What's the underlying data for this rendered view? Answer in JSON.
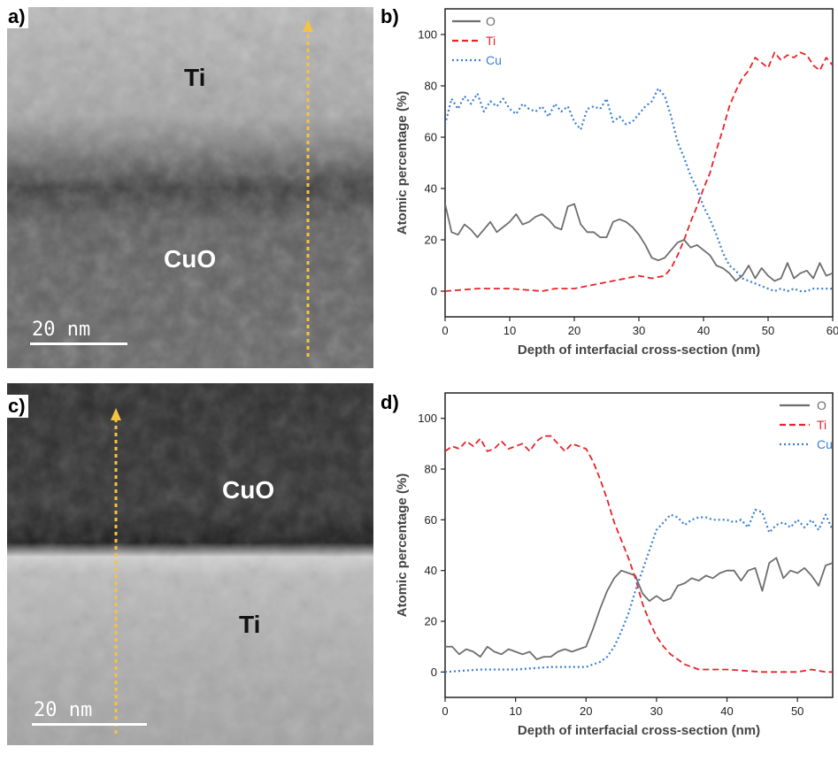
{
  "panels": {
    "a": {
      "tag": "a)",
      "top_label": "Ti",
      "bottom_label": "CuO",
      "scale_text": "20 nm"
    },
    "c": {
      "tag": "c)",
      "top_label": "CuO",
      "bottom_label": "Ti",
      "scale_text": "20 nm"
    },
    "b": {
      "tag": "b)"
    },
    "d": {
      "tag": "d)"
    }
  },
  "colors": {
    "O": "#6e6e6e",
    "Ti": "#e8232a",
    "Cu": "#3a7fd5",
    "arrow": "#f5c342"
  },
  "chart_data": [
    {
      "id": "b",
      "type": "line",
      "xlabel": "Depth of interfacial cross-section (nm)",
      "ylabel": "Atomic percentage (%)",
      "xlim": [
        0,
        60
      ],
      "ylim": [
        -10,
        110
      ],
      "xticks": [
        0,
        10,
        20,
        30,
        40,
        50,
        60
      ],
      "yticks": [
        0,
        20,
        40,
        60,
        80,
        100
      ],
      "legend_position": "top-left",
      "series": [
        {
          "name": "O",
          "style": "solid",
          "x": [
            0,
            1,
            2,
            3,
            4,
            5,
            6,
            7,
            8,
            9,
            10,
            11,
            12,
            13,
            14,
            15,
            16,
            17,
            18,
            19,
            20,
            21,
            22,
            23,
            24,
            25,
            26,
            27,
            28,
            29,
            30,
            31,
            32,
            33,
            34,
            35,
            36,
            37,
            38,
            39,
            40,
            41,
            42,
            43,
            44,
            45,
            46,
            47,
            48,
            49,
            50,
            51,
            52,
            53,
            54,
            55,
            56,
            57,
            58,
            59,
            60
          ],
          "y": [
            34,
            23,
            22,
            26,
            24,
            21,
            24,
            27,
            23,
            25,
            27,
            30,
            26,
            27,
            29,
            30,
            28,
            25,
            24,
            33,
            34,
            26,
            23,
            23,
            21,
            21,
            27,
            28,
            27,
            25,
            22,
            18,
            13,
            12,
            13,
            16,
            19,
            20,
            17,
            18,
            16,
            14,
            10,
            9,
            7,
            4,
            6,
            10,
            5,
            9,
            6,
            4,
            5,
            11,
            5,
            7,
            8,
            5,
            11,
            6,
            7
          ]
        },
        {
          "name": "Ti",
          "style": "dashed",
          "x": [
            0,
            5,
            10,
            15,
            17,
            20,
            22,
            24,
            26,
            28,
            30,
            32,
            34,
            35,
            36,
            37,
            38,
            39,
            40,
            41,
            42,
            43,
            44,
            45,
            46,
            47,
            48,
            49,
            50,
            51,
            52,
            53,
            54,
            55,
            56,
            57,
            58,
            59,
            60
          ],
          "y": [
            0,
            1,
            1,
            0,
            1,
            1,
            2,
            3,
            4,
            5,
            6,
            5,
            6,
            9,
            14,
            20,
            27,
            33,
            40,
            46,
            55,
            63,
            72,
            78,
            83,
            86,
            91,
            89,
            87,
            93,
            90,
            92,
            91,
            93,
            92,
            88,
            86,
            91,
            88
          ]
        },
        {
          "name": "Cu",
          "style": "dotted",
          "x": [
            0,
            1,
            2,
            3,
            4,
            5,
            6,
            7,
            8,
            9,
            10,
            11,
            12,
            13,
            14,
            15,
            16,
            17,
            18,
            19,
            20,
            21,
            22,
            23,
            24,
            25,
            26,
            27,
            28,
            29,
            30,
            31,
            32,
            33,
            34,
            35,
            36,
            37,
            38,
            39,
            40,
            41,
            42,
            43,
            44,
            45,
            46,
            47,
            48,
            49,
            50,
            51,
            52,
            53,
            54,
            55,
            56,
            57,
            58,
            59,
            60
          ],
          "y": [
            65,
            75,
            71,
            76,
            73,
            77,
            70,
            74,
            72,
            75,
            71,
            69,
            73,
            71,
            70,
            72,
            68,
            73,
            70,
            72,
            66,
            63,
            71,
            72,
            71,
            75,
            66,
            68,
            65,
            66,
            69,
            72,
            74,
            79,
            76,
            68,
            58,
            52,
            45,
            40,
            33,
            28,
            22,
            15,
            10,
            8,
            5,
            4,
            3,
            2,
            1,
            0,
            1,
            0,
            1,
            0,
            0,
            1,
            1,
            1,
            1
          ]
        }
      ]
    },
    {
      "id": "d",
      "type": "line",
      "xlabel": "Depth of interfacial cross-section (nm)",
      "ylabel": "Atomic percentage (%)",
      "xlim": [
        0,
        55
      ],
      "ylim": [
        -10,
        110
      ],
      "xticks": [
        0,
        10,
        20,
        30,
        40,
        50
      ],
      "yticks": [
        0,
        20,
        40,
        60,
        80,
        100
      ],
      "legend_position": "top-right",
      "series": [
        {
          "name": "O",
          "style": "solid",
          "x": [
            0,
            1,
            2,
            3,
            4,
            5,
            6,
            7,
            8,
            9,
            10,
            11,
            12,
            13,
            14,
            15,
            16,
            17,
            18,
            19,
            20,
            21,
            22,
            23,
            24,
            25,
            26,
            27,
            28,
            29,
            30,
            31,
            32,
            33,
            34,
            35,
            36,
            37,
            38,
            39,
            40,
            41,
            42,
            43,
            44,
            45,
            46,
            47,
            48,
            49,
            50,
            51,
            52,
            53,
            54,
            55
          ],
          "y": [
            10,
            10,
            7,
            9,
            8,
            6,
            10,
            8,
            7,
            9,
            8,
            7,
            8,
            5,
            6,
            6,
            8,
            9,
            8,
            9,
            10,
            17,
            25,
            32,
            37,
            40,
            39,
            38,
            31,
            28,
            30,
            28,
            29,
            34,
            35,
            37,
            36,
            38,
            37,
            39,
            40,
            40,
            36,
            40,
            41,
            32,
            43,
            45,
            37,
            40,
            39,
            41,
            38,
            34,
            42,
            43
          ]
        },
        {
          "name": "Ti",
          "style": "dashed",
          "x": [
            0,
            1,
            2,
            3,
            4,
            5,
            6,
            7,
            8,
            9,
            10,
            11,
            12,
            13,
            14,
            15,
            16,
            17,
            18,
            19,
            20,
            21,
            22,
            23,
            24,
            25,
            26,
            27,
            28,
            29,
            30,
            31,
            32,
            33,
            34,
            35,
            36,
            37,
            38,
            40,
            45,
            50,
            52,
            54,
            55
          ],
          "y": [
            87,
            89,
            88,
            91,
            89,
            92,
            87,
            88,
            91,
            88,
            89,
            90,
            87,
            91,
            93,
            93,
            90,
            87,
            90,
            89,
            88,
            83,
            76,
            68,
            59,
            52,
            45,
            37,
            27,
            20,
            14,
            10,
            7,
            5,
            3,
            2,
            1,
            1,
            1,
            1,
            0,
            0,
            1,
            0,
            0
          ]
        },
        {
          "name": "Cu",
          "style": "dotted",
          "x": [
            0,
            5,
            10,
            15,
            20,
            21,
            22,
            23,
            24,
            25,
            26,
            27,
            28,
            29,
            30,
            31,
            32,
            33,
            34,
            35,
            36,
            37,
            38,
            39,
            40,
            41,
            42,
            43,
            44,
            45,
            46,
            47,
            48,
            49,
            50,
            51,
            52,
            53,
            54,
            55
          ],
          "y": [
            0,
            1,
            1,
            2,
            2,
            3,
            4,
            6,
            10,
            16,
            23,
            32,
            40,
            48,
            56,
            59,
            62,
            61,
            58,
            60,
            61,
            61,
            60,
            60,
            60,
            59,
            60,
            57,
            64,
            63,
            55,
            58,
            59,
            57,
            60,
            57,
            60,
            56,
            62,
            56
          ]
        }
      ]
    }
  ]
}
